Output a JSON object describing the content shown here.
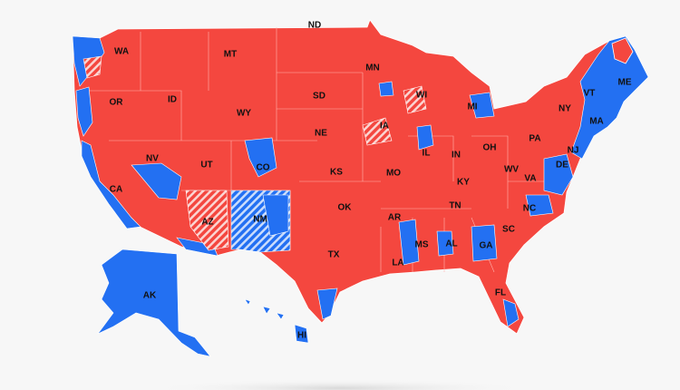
{
  "state_labels": [
    "WA",
    "MT",
    "ND",
    "MN",
    "OR",
    "ID",
    "WY",
    "SD",
    "WI",
    "MI",
    "VT",
    "ME",
    "NY",
    "MA",
    "IA",
    "NE",
    "NV",
    "UT",
    "CO",
    "KS",
    "IL",
    "IN",
    "OH",
    "PA",
    "NJ",
    "DE",
    "MO",
    "KY",
    "WV",
    "VA",
    "CA",
    "AZ",
    "NM",
    "OK",
    "AR",
    "TN",
    "NC",
    "SC",
    "TX",
    "MS",
    "AL",
    "GA",
    "LA",
    "FL",
    "AK",
    "HI"
  ]
}
